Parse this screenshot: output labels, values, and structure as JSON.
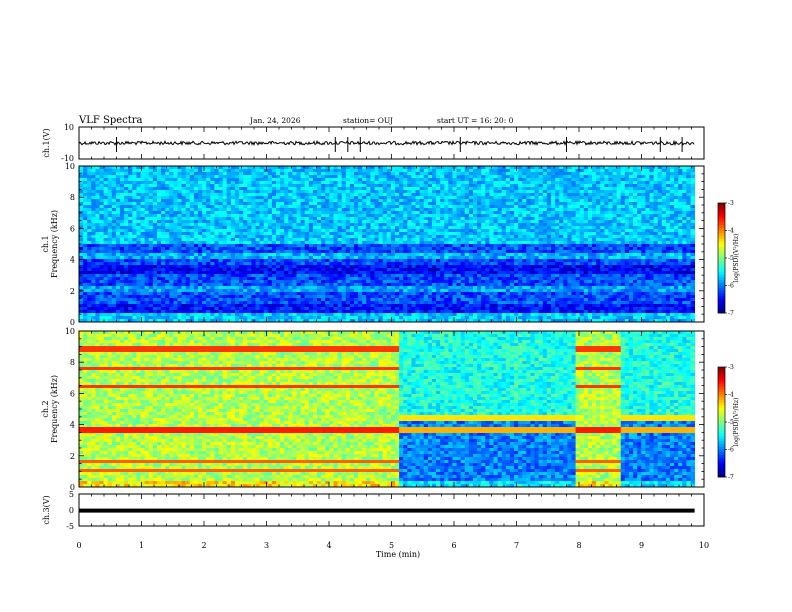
{
  "header": {
    "title": "VLF Spectra",
    "date": "Jan. 24, 2026",
    "station": "station= OUJ",
    "start_ut": "start  UT =  16: 20: 0"
  },
  "chart_data": {
    "type": "heatmap",
    "title": "VLF Spectra",
    "xlabel": "Time  (min)",
    "xlim": [
      0,
      10
    ],
    "xticks": [
      "0",
      "1",
      "2",
      "3",
      "4",
      "5",
      "6",
      "7",
      "8",
      "9",
      "10"
    ],
    "data_end_min": 9.85,
    "panels": [
      {
        "name": "ch1-waveform",
        "type": "line",
        "ylabel": "ch.1(V)",
        "ylim": [
          -10,
          10
        ],
        "yticks": [
          "10",
          "-10"
        ],
        "baseline_v": 0,
        "spikes_min": [
          0.6,
          4.1,
          4.3,
          4.5,
          6.1,
          7.8,
          9.3,
          9.65
        ]
      },
      {
        "name": "ch1-spectrogram",
        "type": "heatmap",
        "ylabel_1": "ch.1",
        "ylabel_2": "Frequency  (kHz)",
        "ylim": [
          0,
          10
        ],
        "yticks": [
          "0",
          "2",
          "4",
          "6",
          "8",
          "10"
        ],
        "colorbar": {
          "min": -7,
          "max": -3,
          "ticks": [
            "-3",
            "-4",
            "-5",
            "-6",
            "-7"
          ],
          "label": "log(PSD)(V²/Hz)"
        }
      },
      {
        "name": "ch2-spectrogram",
        "type": "heatmap",
        "ylabel_1": "ch.2",
        "ylabel_2": "Frequency  (kHz)",
        "ylim": [
          0,
          10
        ],
        "yticks": [
          "0",
          "2",
          "4",
          "6",
          "8",
          "10"
        ],
        "segment_changes_min": [
          5.1,
          7.95,
          8.65
        ],
        "colorbar": {
          "min": -7,
          "max": -3,
          "ticks": [
            "-3",
            "-4",
            "-5",
            "-6",
            "-7"
          ],
          "label": "log(PSD)(V²/Hz)"
        }
      },
      {
        "name": "ch3-waveform",
        "type": "line",
        "ylabel": "ch.3(V)",
        "ylim": [
          -5,
          5
        ],
        "yticks": [
          "5",
          "0",
          "-5"
        ],
        "baseline_v": -0.2
      }
    ]
  }
}
